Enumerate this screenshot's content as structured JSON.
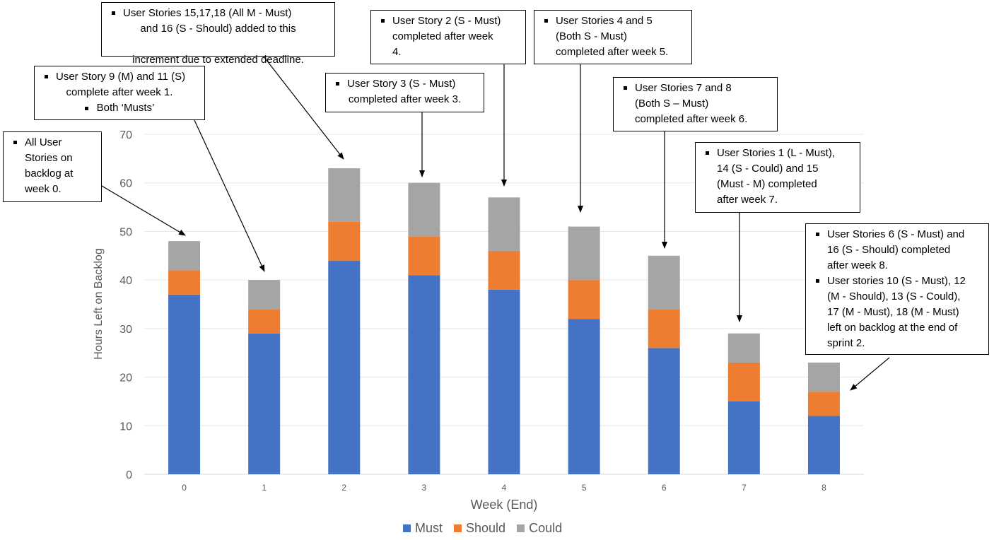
{
  "chart_data": {
    "type": "bar",
    "stacked": true,
    "categories": [
      "0",
      "1",
      "2",
      "3",
      "4",
      "5",
      "6",
      "7",
      "8"
    ],
    "series": [
      {
        "name": "Must",
        "values": [
          37,
          29,
          44,
          41,
          38,
          32,
          26,
          15,
          12
        ],
        "color": "#4472C4"
      },
      {
        "name": "Should",
        "values": [
          5,
          5,
          8,
          8,
          8,
          8,
          8,
          8,
          5
        ],
        "color": "#ED7D31"
      },
      {
        "name": "Could",
        "values": [
          6,
          6,
          11,
          11,
          11,
          11,
          11,
          6,
          6
        ],
        "color": "#A5A5A5"
      }
    ],
    "xlabel": "Week (End)",
    "ylabel": "Hours Left on Backlog",
    "ylim": [
      0,
      70
    ],
    "yticks": [
      0,
      10,
      20,
      30,
      40,
      50,
      60,
      70
    ],
    "grid": true,
    "legend_position": "bottom"
  },
  "annotations": [
    {
      "id": "a0",
      "target": "0",
      "lines": [
        "All User",
        "Stories on",
        "backlog at",
        "week 0."
      ],
      "center": []
    },
    {
      "id": "a1",
      "target": "1",
      "lines": [
        "User Story 9 (M) and 11 (S)",
        "complete after week 1.",
        "Both ‘Musts’"
      ],
      "center": [
        1,
        2
      ]
    },
    {
      "id": "a2",
      "target": "2",
      "lines": [
        "User Stories 15,17,18 (All M - Must)",
        "and 16  (S - Should) added to this",
        "increment due to extended deadline."
      ],
      "center": [
        1,
        2
      ]
    },
    {
      "id": "a3",
      "target": "3",
      "lines": [
        "User Story 3 (S - Must)",
        "completed after week 3."
      ],
      "center": [
        1
      ]
    },
    {
      "id": "a4",
      "target": "4",
      "lines": [
        "User Story 2 (S - Must)",
        "completed after week",
        "4."
      ],
      "center": []
    },
    {
      "id": "a5",
      "target": "5",
      "lines": [
        "User Stories 4 and 5",
        "(Both S - Must)",
        "completed after week 5."
      ],
      "center": []
    },
    {
      "id": "a6",
      "target": "6",
      "lines": [
        "User Stories 7 and 8",
        "(Both S – Must)",
        "completed after week 6."
      ],
      "center": []
    },
    {
      "id": "a7",
      "target": "7",
      "lines": [
        "User Stories 1 (L - Must),",
        "14 (S - Could) and 15",
        "(Must - M) completed",
        "after week 7."
      ],
      "center": []
    },
    {
      "id": "a8",
      "target": "8",
      "items": [
        [
          "User Stories 6 (S - Must) and",
          "16 (S - Should) completed",
          "after week 8."
        ],
        [
          "User stories 10 (S - Must), 12",
          "(M - Should), 13 (S - Could),",
          "17 (M - Must), 18 (M - Must)",
          "left on backlog at the end of",
          "sprint 2."
        ]
      ]
    }
  ]
}
